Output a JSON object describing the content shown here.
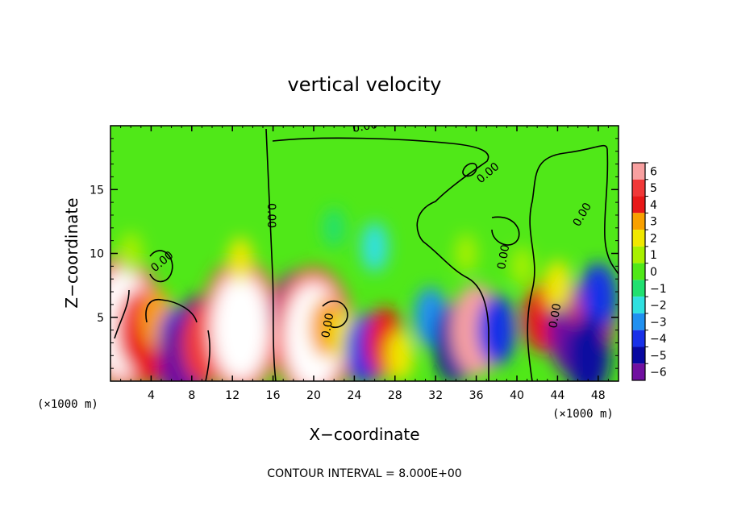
{
  "chart_data": {
    "type": "heatmap",
    "title": "vertical velocity",
    "xlabel": "X−coordinate",
    "ylabel": "Z−coordinate",
    "x_unit_left": "(×1000 m)",
    "x_unit_right": "(×1000 m)",
    "x_ticks": [
      4,
      8,
      12,
      16,
      20,
      24,
      28,
      32,
      36,
      40,
      44,
      48
    ],
    "x_tick_labels": [
      "4",
      "8",
      "12",
      "16",
      "20",
      "24",
      "28",
      "32",
      "36",
      "40",
      "44",
      "48"
    ],
    "y_ticks": [
      5,
      10,
      15
    ],
    "y_tick_labels": [
      "5",
      "10",
      "15"
    ],
    "xlim": [
      0,
      50
    ],
    "ylim": [
      0,
      20
    ],
    "footer": "CONTOUR INTERVAL = 8.000E+00",
    "contour_labels": [
      "0.00",
      "0.00",
      "0.00",
      "0.00",
      "0.00",
      "0.00",
      "0.00",
      "0.00"
    ],
    "colorbar": {
      "levels": [
        6,
        5,
        4,
        3,
        2,
        1,
        0,
        -1,
        -2,
        -3,
        -4,
        -5,
        -6
      ],
      "labels": [
        "6",
        "5",
        "4",
        "3",
        "2",
        "1",
        "0",
        "−1",
        "−2",
        "−3",
        "−4",
        "−5",
        "−6"
      ],
      "colors": [
        "#f8a0a0",
        "#f03838",
        "#e81818",
        "#f8a000",
        "#f0e800",
        "#a8f000",
        "#50e818",
        "#20e070",
        "#30e0e0",
        "#2090f0",
        "#1830e8",
        "#0808a0",
        "#7010a0"
      ]
    },
    "anomalies": [
      {
        "x": 1.2,
        "z": 4.5,
        "w": 14
      },
      {
        "x": 2.8,
        "z": 4.0,
        "w": 5
      },
      {
        "x": 3.7,
        "z": 2.5,
        "w": 4
      },
      {
        "x": 4.6,
        "z": 4.8,
        "w": 3
      },
      {
        "x": 6.6,
        "z": 3.0,
        "w": -4
      },
      {
        "x": 7.2,
        "z": 1.5,
        "w": -6
      },
      {
        "x": 8.6,
        "z": 3.5,
        "w": -5
      },
      {
        "x": 9.2,
        "z": 3.0,
        "w": 5
      },
      {
        "x": 10.7,
        "z": 2.5,
        "w": 2
      },
      {
        "x": 12.8,
        "z": 4.2,
        "w": 16
      },
      {
        "x": 12.8,
        "z": 9.5,
        "w": 1.5
      },
      {
        "x": 2.0,
        "z": 10.0,
        "w": 1.3
      },
      {
        "x": 18.3,
        "z": 5.0,
        "w": -6
      },
      {
        "x": 20.0,
        "z": 3.5,
        "w": 10
      },
      {
        "x": 21.2,
        "z": 4.2,
        "w": 3
      },
      {
        "x": 23.0,
        "z": 3.5,
        "w": 2
      },
      {
        "x": 25.0,
        "z": 2.5,
        "w": -4
      },
      {
        "x": 27.0,
        "z": 3.0,
        "w": 4
      },
      {
        "x": 28.5,
        "z": 2.0,
        "w": 2
      },
      {
        "x": 26.0,
        "z": 10.5,
        "w": -2
      },
      {
        "x": 22.0,
        "z": 12.0,
        "w": -1
      },
      {
        "x": 31.5,
        "z": 5.0,
        "w": -3
      },
      {
        "x": 34.0,
        "z": 3.0,
        "w": -5
      },
      {
        "x": 36.0,
        "z": 4.0,
        "w": 6
      },
      {
        "x": 38.0,
        "z": 4.0,
        "w": -4
      },
      {
        "x": 42.5,
        "z": 5.0,
        "w": 4
      },
      {
        "x": 45.5,
        "z": 4.0,
        "w": -6
      },
      {
        "x": 47.5,
        "z": 5.0,
        "w": 5
      },
      {
        "x": 48.0,
        "z": 6.5,
        "w": -4
      },
      {
        "x": 44.0,
        "z": 7.5,
        "w": 2
      },
      {
        "x": 47.0,
        "z": 2.0,
        "w": -5
      },
      {
        "x": 40.5,
        "z": 9.0,
        "w": 1
      },
      {
        "x": 35.0,
        "z": 10.0,
        "w": 1
      }
    ]
  }
}
